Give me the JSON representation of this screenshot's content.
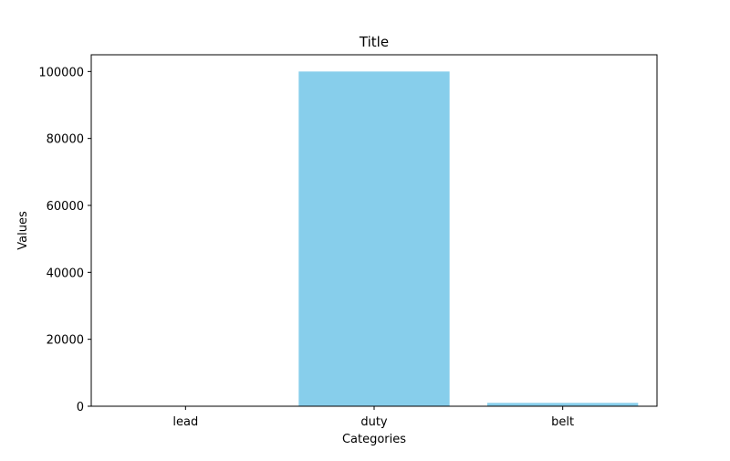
{
  "chart_data": {
    "type": "bar",
    "title": "Title",
    "xlabel": "Categories",
    "ylabel": "Values",
    "categories": [
      "lead",
      "duty",
      "belt"
    ],
    "values": [
      10,
      100000,
      1000
    ],
    "ylim": [
      0,
      105000
    ],
    "yticks": [
      0,
      20000,
      40000,
      60000,
      80000,
      100000
    ],
    "ytick_labels": [
      "0",
      "20000",
      "40000",
      "60000",
      "80000",
      "100000"
    ],
    "bar_color": "#87CEEB",
    "grid": false,
    "legend": false
  }
}
